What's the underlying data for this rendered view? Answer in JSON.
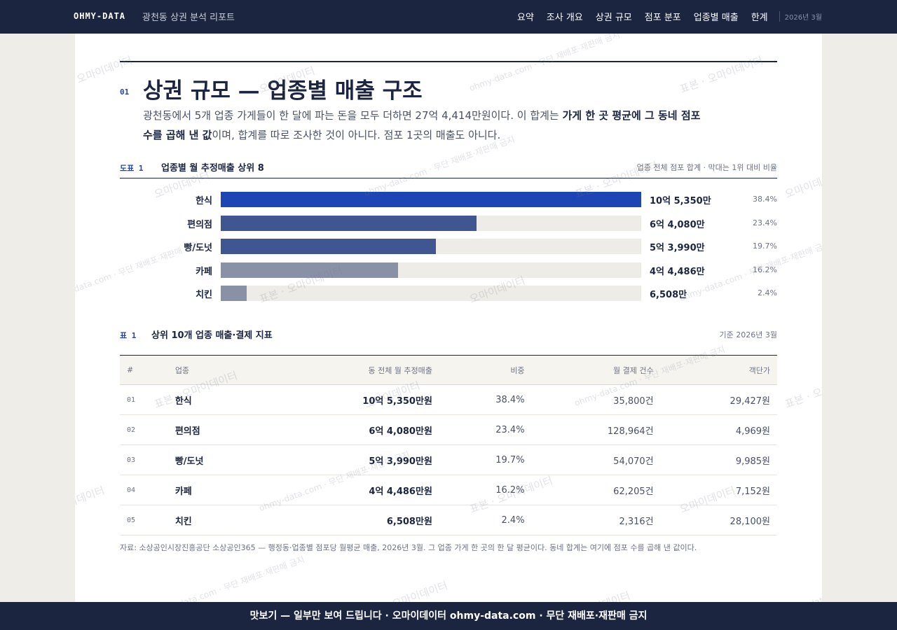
{
  "nav": {
    "brand": "OHMY-DATA",
    "report": "광천동 상권 분석 리포트",
    "links": [
      "요약",
      "조사 개요",
      "상권 규모",
      "점포 분포",
      "업종별 매출",
      "한계"
    ],
    "date": "2026년 3월"
  },
  "section": {
    "number": "01",
    "title": "상권 규모 — 업종별 매출 구조",
    "intro": [
      "광천동에서 5개 업종 가게들이 한 달에 파는 돈을 모두 더하면 27억 4,414만원이다. 이 합계는 ",
      "가게 한 곳 평균에 그 동네 점포 수를 곱해 낸 값",
      "이며, 합계를 따로 조사한 것이 아니다. 점포 1곳의 매출도 아니다."
    ]
  },
  "figure": {
    "label": "도표 1",
    "title": "업종별 월 추정매출 상위 8",
    "note": "업종 전체 점포 합계 · 막대는 1위 대비 비율",
    "chart_data": {
      "type": "bar",
      "categories": [
        "한식",
        "편의점",
        "빵/도넛",
        "카페",
        "치킨"
      ],
      "values": [
        105350,
        64080,
        53990,
        44486,
        6508
      ],
      "value_labels": [
        "10억 5,350만",
        "6억 4,080만",
        "5억 3,990만",
        "4억 4,486만",
        "6,508만"
      ],
      "shares": [
        "38.4%",
        "23.4%",
        "19.7%",
        "16.2%",
        "2.4%"
      ],
      "colors": [
        "#1d45b3",
        "#3f5690",
        "#3f5690",
        "#8991a6",
        "#8991a6"
      ],
      "track_color": "#eeece6"
    }
  },
  "table": {
    "label": "표 1",
    "title": "상위 10개 업종 매출·결제 지표",
    "note": "기준 2026년 3월",
    "headers": [
      "#",
      "업종",
      "동 전체 월 추정매출",
      "비중",
      "월 결제 건수",
      "객단가"
    ],
    "rows": [
      [
        "01",
        "한식",
        "10억 5,350만원",
        "38.4%",
        "35,800건",
        "29,427원"
      ],
      [
        "02",
        "편의점",
        "6억 4,080만원",
        "23.4%",
        "128,964건",
        "4,969원"
      ],
      [
        "03",
        "빵/도넛",
        "5억 3,990만원",
        "19.7%",
        "54,070건",
        "9,985원"
      ],
      [
        "04",
        "카페",
        "4억 4,486만원",
        "16.2%",
        "62,205건",
        "7,152원"
      ],
      [
        "05",
        "치킨",
        "6,508만원",
        "2.4%",
        "2,316건",
        "28,100원"
      ]
    ],
    "source": "자료: 소상공인시장진흥공단 소상공인365 — 행정동·업종별 점포당 월평균 매출, 2026년 3월. 그 업종 가게 한 곳의 한 달 평균이다. 동네 합계는 여기에 점포 수를 곱해 낸 값이다."
  },
  "footer": "맛보기 — 일부만 보여 드립니다 · 오마이데이터 ohmy-data.com · 무단 재배포·재판매 금지",
  "watermarks": [
    "표본 · 오마이데이터",
    "오마이데이터",
    "ohmy-data.com · 무단 재배포·재판매 금지"
  ]
}
